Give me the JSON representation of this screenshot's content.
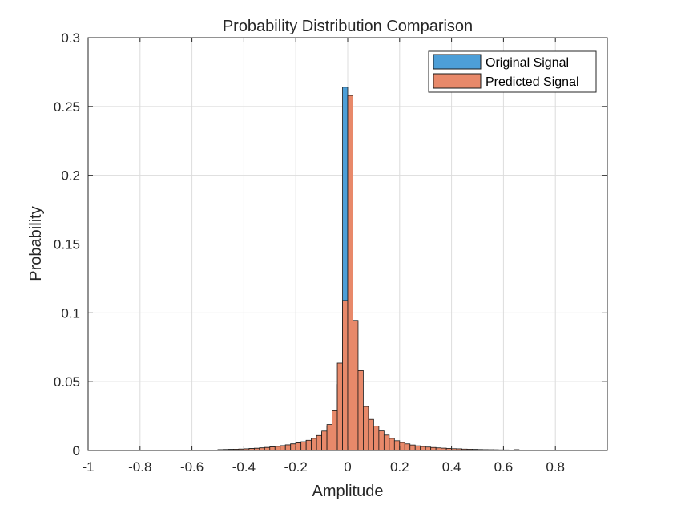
{
  "chart_data": {
    "type": "bar",
    "title": "Probability Distribution Comparison",
    "xlabel": "Amplitude",
    "ylabel": "Probability",
    "xlim": [
      -1,
      1
    ],
    "ylim": [
      0,
      0.3
    ],
    "xticks": [
      -1,
      -0.8,
      -0.6,
      -0.4,
      -0.2,
      0,
      0.2,
      0.4,
      0.6,
      0.8
    ],
    "xtick_labels": [
      "-1",
      "-0.8",
      "-0.6",
      "-0.4",
      "-0.2",
      "0",
      "0.2",
      "0.4",
      "0.6",
      "0.8"
    ],
    "yticks": [
      0,
      0.05,
      0.1,
      0.15,
      0.2,
      0.25,
      0.3
    ],
    "ytick_labels": [
      "0",
      "0.05",
      "0.1",
      "0.15",
      "0.2",
      "0.25",
      "0.3"
    ],
    "grid": true,
    "legend_position": "top-right",
    "bin_width": 0.02,
    "x": [
      -0.49,
      -0.47,
      -0.45,
      -0.43,
      -0.41,
      -0.39,
      -0.37,
      -0.35,
      -0.33,
      -0.31,
      -0.29,
      -0.27,
      -0.25,
      -0.23,
      -0.21,
      -0.19,
      -0.17,
      -0.15,
      -0.13,
      -0.11,
      -0.09,
      -0.07,
      -0.05,
      -0.03,
      -0.01,
      0.01,
      0.03,
      0.05,
      0.07,
      0.09,
      0.11,
      0.13,
      0.15,
      0.17,
      0.19,
      0.21,
      0.23,
      0.25,
      0.27,
      0.29,
      0.31,
      0.33,
      0.35,
      0.37,
      0.39,
      0.41,
      0.43,
      0.45,
      0.47,
      0.49,
      0.51,
      0.53,
      0.55,
      0.57,
      0.59,
      0.61,
      0.63,
      0.65
    ],
    "series": [
      {
        "name": "Original Signal",
        "color": "#4d9fd8",
        "values": [
          0.0006,
          0.0007,
          0.0008,
          0.0009,
          0.001,
          0.0012,
          0.0014,
          0.0016,
          0.0019,
          0.0022,
          0.0026,
          0.003,
          0.0035,
          0.0041,
          0.0048,
          0.0055,
          0.0063,
          0.0073,
          0.0085,
          0.0104,
          0.0132,
          0.0174,
          0.0251,
          0.048,
          0.264,
          0.108,
          0.037,
          0.022,
          0.016,
          0.0125,
          0.0101,
          0.0084,
          0.007,
          0.0058,
          0.0048,
          0.004,
          0.0034,
          0.0029,
          0.0025,
          0.0022,
          0.0019,
          0.0017,
          0.0015,
          0.0013,
          0.0012,
          0.0011,
          0.001,
          0.0009,
          0.0008,
          0.0007,
          0.0006,
          0.0005,
          0.0005,
          0.0004,
          0.0004,
          0.0003,
          0.0003,
          0.0003
        ]
      },
      {
        "name": "Predicted Signal",
        "color": "#e8896a",
        "values": [
          0.0006,
          0.0007,
          0.0008,
          0.0009,
          0.001,
          0.0012,
          0.0014,
          0.0016,
          0.0019,
          0.0022,
          0.0026,
          0.003,
          0.0035,
          0.0041,
          0.0048,
          0.0055,
          0.0063,
          0.0074,
          0.0088,
          0.0109,
          0.0141,
          0.0189,
          0.0289,
          0.0635,
          0.109,
          0.258,
          0.0945,
          0.058,
          0.032,
          0.0226,
          0.0177,
          0.0142,
          0.0112,
          0.0088,
          0.0071,
          0.0058,
          0.0048,
          0.004,
          0.0034,
          0.0029,
          0.0025,
          0.0022,
          0.0019,
          0.0017,
          0.0015,
          0.0013,
          0.0012,
          0.001,
          0.0009,
          0.0008,
          0.0007,
          0.0006,
          0.0005,
          0.0005,
          0.0004,
          0.0004,
          0.0003,
          0.0006
        ]
      }
    ]
  }
}
